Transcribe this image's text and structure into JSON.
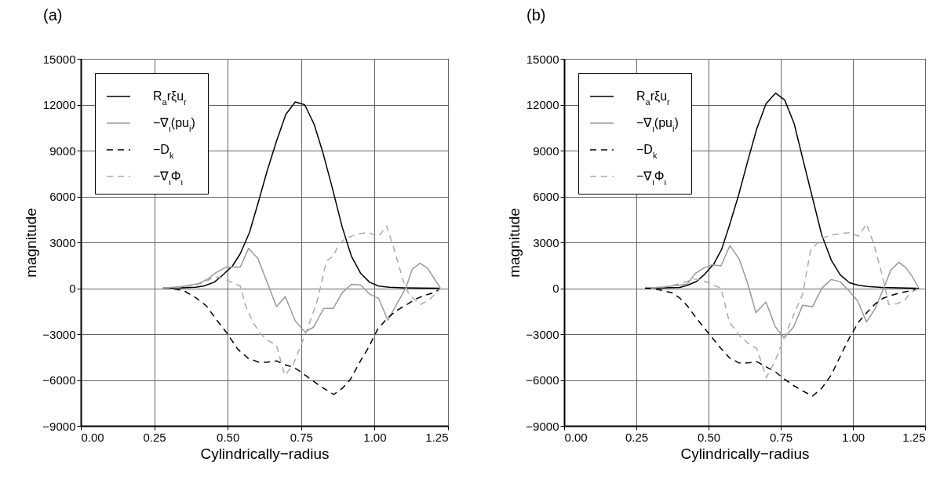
{
  "chart_data": [
    {
      "type": "line",
      "title": "(a)",
      "xlabel": "Cylindrically−radius",
      "ylabel": "magnitude",
      "xlim": [
        0,
        1.25
      ],
      "ylim": [
        -9000,
        15000
      ],
      "xticks": [
        {
          "value": 0,
          "label": "0.00"
        },
        {
          "value": 0.25,
          "label": "0.25"
        },
        {
          "value": 0.5,
          "label": "0.50"
        },
        {
          "value": 0.75,
          "label": "0.75"
        },
        {
          "value": 1,
          "label": "1.00"
        },
        {
          "value": 1.25,
          "label": "1.25"
        }
      ],
      "yticks": [
        {
          "value": -9000,
          "label": "−9000"
        },
        {
          "value": -6000,
          "label": "−6000"
        },
        {
          "value": -3000,
          "label": "−3000"
        },
        0,
        3000,
        6000,
        9000,
        12000,
        15000
      ],
      "grid": true,
      "legend": "top left",
      "series": [
        {
          "name": "R$_{a}$rξu$_{r}$",
          "color": "#000000",
          "line_style": "solid",
          "x": [
            0.28,
            0.34,
            0.39,
            0.418,
            0.454,
            0.485,
            0.516,
            0.543,
            0.574,
            0.605,
            0.634,
            0.666,
            0.698,
            0.73,
            0.762,
            0.794,
            0.823,
            0.854,
            0.89,
            0.921,
            0.952,
            0.983,
            1.014,
            1.05,
            1.1,
            1.22
          ],
          "values": [
            0,
            20,
            60,
            140,
            390,
            900,
            1450,
            2270,
            3640,
            5680,
            7650,
            9620,
            11370,
            12180,
            12000,
            10730,
            8940,
            6710,
            3980,
            2100,
            990,
            390,
            140,
            60,
            30,
            0
          ]
        },
        {
          "name": "−∇$_{ι}$(pu$_{i}$)",
          "color": "#999999",
          "line_style": "solid",
          "x": [
            0.28,
            0.34,
            0.4,
            0.432,
            0.458,
            0.489,
            0.516,
            0.543,
            0.571,
            0.603,
            0.641,
            0.666,
            0.696,
            0.73,
            0.763,
            0.792,
            0.827,
            0.859,
            0.89,
            0.921,
            0.952,
            0.983,
            1.014,
            1.045,
            1.077,
            1.107,
            1.128,
            1.155,
            1.181,
            1.224
          ],
          "values": [
            0,
            100,
            300,
            600,
            990,
            1330,
            1400,
            1380,
            2610,
            1930,
            50,
            -1200,
            -550,
            -2140,
            -2860,
            -2550,
            -1320,
            -1320,
            -290,
            260,
            220,
            -380,
            -670,
            -2090,
            -980,
            50,
            1250,
            1630,
            1290,
            0
          ]
        },
        {
          "name": "−D$_{k}$",
          "color": "#000000",
          "line_style": "dashed",
          "x": [
            0.28,
            0.31,
            0.35,
            0.392,
            0.427,
            0.463,
            0.498,
            0.534,
            0.57,
            0.605,
            0.636,
            0.667,
            0.694,
            0.726,
            0.752,
            0.783,
            0.819,
            0.861,
            0.89,
            0.917,
            0.952,
            0.979,
            1.01,
            1.041,
            1.072,
            1.103,
            1.139,
            1.171,
            1.202,
            1.224
          ],
          "values": [
            0,
            -30,
            -150,
            -630,
            -1150,
            -2090,
            -2950,
            -3980,
            -4580,
            -4830,
            -4830,
            -4750,
            -5000,
            -5180,
            -5520,
            -5950,
            -6460,
            -6940,
            -6550,
            -5980,
            -4750,
            -3890,
            -2690,
            -2010,
            -1490,
            -1150,
            -720,
            -460,
            -290,
            -30
          ]
        },
        {
          "name": "−∇$_{ι}$Φ$_{ι}$",
          "color": "#aaaaaa",
          "line_style": "dashed",
          "x": [
            0.28,
            0.34,
            0.4,
            0.43,
            0.454,
            0.48,
            0.512,
            0.543,
            0.561,
            0.587,
            0.614,
            0.641,
            0.666,
            0.694,
            0.721,
            0.746,
            0.774,
            0.805,
            0.836,
            0.859,
            0.881,
            0.907,
            0.943,
            0.979,
            1.014,
            1.041,
            1.068,
            1.099,
            1.117,
            1.13,
            1.157,
            1.183,
            1.224
          ],
          "values": [
            0,
            50,
            250,
            500,
            740,
            700,
            390,
            140,
            -1150,
            -2260,
            -3030,
            -3460,
            -3720,
            -5690,
            -5090,
            -3890,
            -2520,
            -810,
            1770,
            2100,
            2960,
            3300,
            3550,
            3640,
            3380,
            4070,
            2450,
            390,
            -380,
            -630,
            -1060,
            -810,
            -30
          ]
        }
      ]
    },
    {
      "type": "line",
      "title": "(b)",
      "xlabel": "Cylindrically−radius",
      "ylabel": "magnitude",
      "xlim": [
        0,
        1.25
      ],
      "ylim": [
        -9000,
        15000
      ],
      "xticks": [
        {
          "value": 0,
          "label": "0.00"
        },
        {
          "value": 0.25,
          "label": "0.25"
        },
        {
          "value": 0.5,
          "label": "0.50"
        },
        {
          "value": 0.75,
          "label": "0.75"
        },
        {
          "value": 1,
          "label": "1.00"
        },
        {
          "value": 1.25,
          "label": "1.25"
        }
      ],
      "yticks": [
        {
          "value": -9000,
          "label": "−9000"
        },
        {
          "value": -6000,
          "label": "−6000"
        },
        {
          "value": -3000,
          "label": "−3000"
        },
        0,
        3000,
        6000,
        9000,
        12000,
        15000
      ],
      "grid": true,
      "legend": "top left",
      "series": [
        {
          "name": "R$_{a}$rξu$_{r}$",
          "color": "#000000",
          "line_style": "solid",
          "x": [
            0.28,
            0.34,
            0.4,
            0.427,
            0.459,
            0.483,
            0.518,
            0.545,
            0.572,
            0.604,
            0.636,
            0.667,
            0.699,
            0.732,
            0.764,
            0.797,
            0.828,
            0.86,
            0.892,
            0.925,
            0.956,
            0.988,
            1.02,
            1.05,
            1.1,
            1.22
          ],
          "values": [
            0,
            20,
            50,
            190,
            450,
            850,
            1580,
            2530,
            4090,
            6080,
            8340,
            10420,
            12070,
            12760,
            12300,
            10730,
            8340,
            5910,
            3490,
            1840,
            880,
            360,
            190,
            120,
            50,
            0
          ]
        },
        {
          "name": "−∇$_{ι}$(pu$_{i}$)",
          "color": "#999999",
          "line_style": "solid",
          "x": [
            0.28,
            0.34,
            0.4,
            0.427,
            0.454,
            0.483,
            0.513,
            0.543,
            0.574,
            0.606,
            0.636,
            0.664,
            0.699,
            0.731,
            0.762,
            0.794,
            0.826,
            0.86,
            0.893,
            0.925,
            0.956,
            0.988,
            1.016,
            1.047,
            1.077,
            1.106,
            1.131,
            1.159,
            1.183,
            1.206,
            1.228
          ],
          "values": [
            0,
            80,
            200,
            280,
            970,
            1320,
            1530,
            1460,
            2790,
            1920,
            280,
            -1600,
            -900,
            -2510,
            -3240,
            -2550,
            -1110,
            -1210,
            20,
            570,
            430,
            -210,
            -820,
            -2200,
            -1340,
            -30,
            1180,
            1700,
            1350,
            750,
            0
          ]
        },
        {
          "name": "−D$_{k}$",
          "color": "#000000",
          "line_style": "dashed",
          "x": [
            0.28,
            0.31,
            0.34,
            0.373,
            0.4,
            0.427,
            0.454,
            0.483,
            0.513,
            0.543,
            0.572,
            0.606,
            0.636,
            0.667,
            0.7,
            0.731,
            0.762,
            0.794,
            0.826,
            0.86,
            0.892,
            0.925,
            0.956,
            0.988,
            1.02,
            1.052,
            1.079,
            1.106,
            1.133,
            1.165,
            1.206,
            1.228
          ],
          "values": [
            0,
            -30,
            -150,
            -290,
            -640,
            -1160,
            -1860,
            -2550,
            -3240,
            -3940,
            -4540,
            -4890,
            -4890,
            -4800,
            -5150,
            -5460,
            -5930,
            -6360,
            -6710,
            -7050,
            -6540,
            -5670,
            -4460,
            -3240,
            -2200,
            -1510,
            -990,
            -640,
            -470,
            -290,
            -150,
            0
          ]
        },
        {
          "name": "−∇$_{ι}$Φ$_{ι}$",
          "color": "#aaaaaa",
          "line_style": "dashed",
          "x": [
            0.3,
            0.37,
            0.4,
            0.427,
            0.443,
            0.473,
            0.509,
            0.543,
            0.572,
            0.606,
            0.636,
            0.667,
            0.7,
            0.731,
            0.762,
            0.794,
            0.826,
            0.853,
            0.889,
            0.925,
            0.961,
            0.99,
            1.02,
            1.047,
            1.074,
            1.101,
            1.124,
            1.151,
            1.178,
            1.2,
            1.228
          ],
          "values": [
            0,
            150,
            300,
            450,
            620,
            540,
            280,
            0,
            -2200,
            -3070,
            -3590,
            -3940,
            -5840,
            -4720,
            -3240,
            -1770,
            -380,
            2450,
            3230,
            3490,
            3580,
            3630,
            3400,
            4210,
            2790,
            880,
            -1070,
            -1020,
            -810,
            -290,
            0
          ]
        }
      ]
    }
  ]
}
